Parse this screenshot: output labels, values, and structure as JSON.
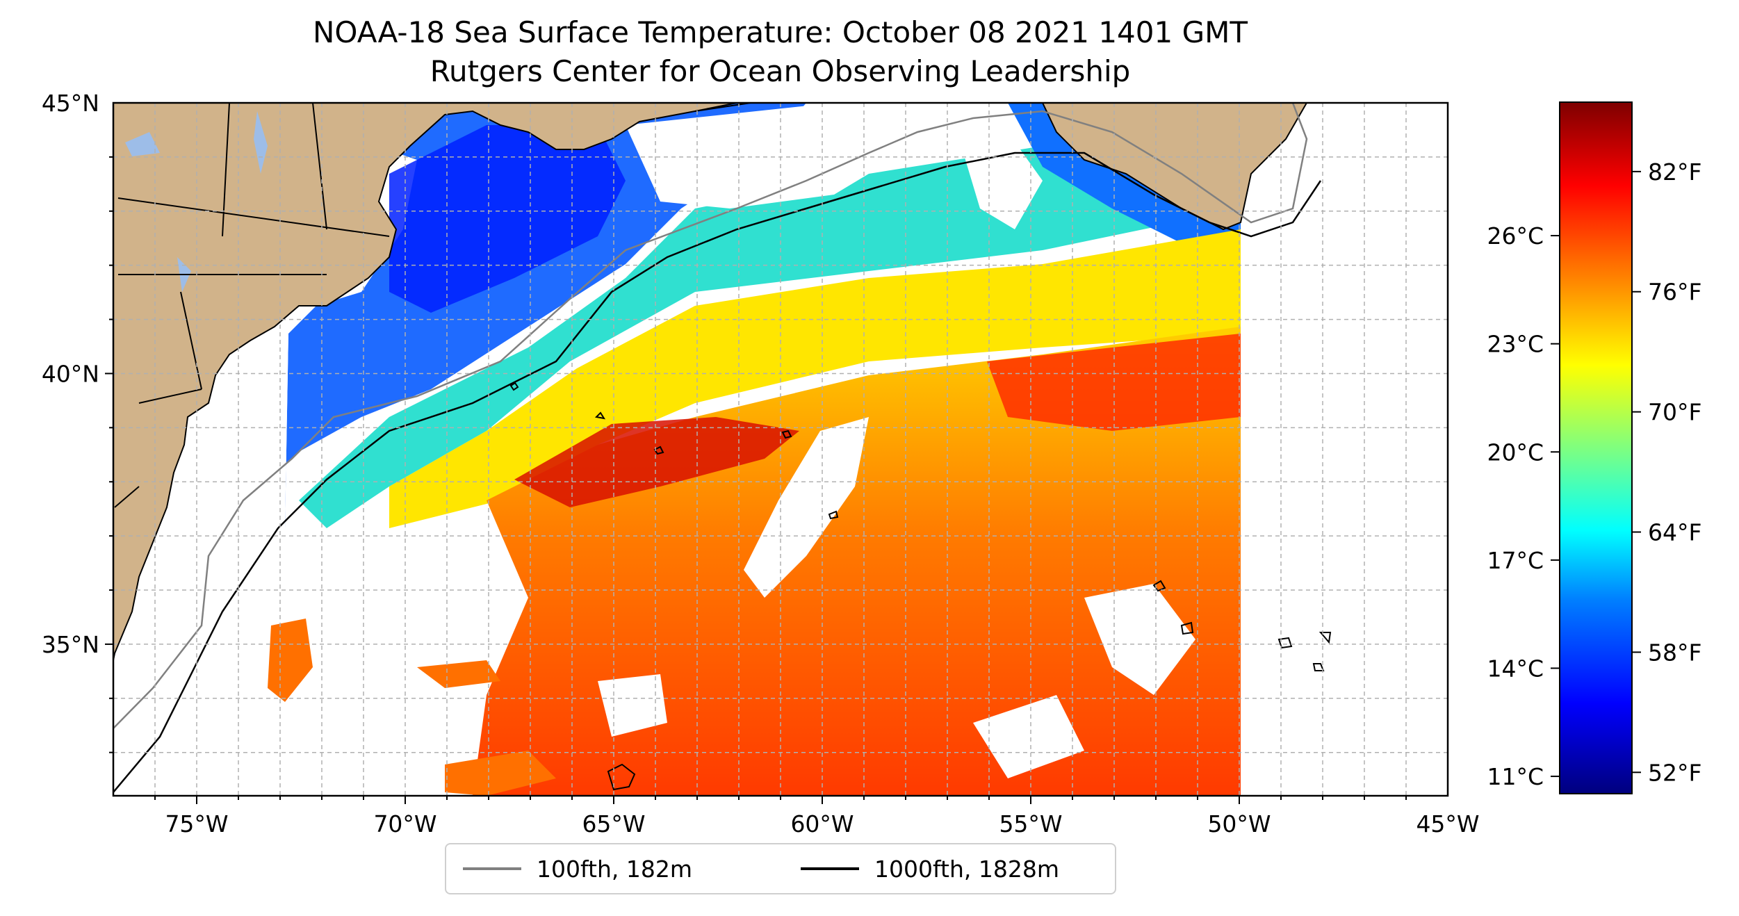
{
  "title": {
    "line1": "NOAA-18 Sea Surface Temperature: October 08 2021 1401 GMT",
    "line2": "Rutgers Center for Ocean Observing Leadership"
  },
  "map": {
    "extent": {
      "lon_min": -77,
      "lon_max": -45,
      "lat_min": 32.2,
      "lat_max": 45
    },
    "lon_ticks": [
      {
        "value": -75,
        "label": "75°W"
      },
      {
        "value": -70,
        "label": "70°W"
      },
      {
        "value": -65,
        "label": "65°W"
      },
      {
        "value": -60,
        "label": "60°W"
      },
      {
        "value": -55,
        "label": "55°W"
      },
      {
        "value": -50,
        "label": "50°W"
      },
      {
        "value": -45,
        "label": "45°W"
      }
    ],
    "lat_ticks": [
      {
        "value": 45,
        "label": "45°N"
      },
      {
        "value": 40,
        "label": "40°N"
      },
      {
        "value": 35,
        "label": "35°N"
      }
    ],
    "colors": {
      "land": "#d1b38a",
      "lakes": "#9dbde8",
      "no_data": "#ffffff",
      "grid": "#b0b0b0",
      "isobath_100fth": "#808080",
      "isobath_1000fth": "#000000"
    }
  },
  "legend": {
    "items": [
      {
        "label": "100fth, 182m",
        "color": "#808080"
      },
      {
        "label": "1000fth, 1828m",
        "color": "#000000"
      }
    ]
  },
  "colorbar": {
    "fahrenheit": [
      {
        "value": 82,
        "label": "82°F"
      },
      {
        "value": 76,
        "label": "76°F"
      },
      {
        "value": 70,
        "label": "70°F"
      },
      {
        "value": 64,
        "label": "64°F"
      },
      {
        "value": 58,
        "label": "58°F"
      },
      {
        "value": 52,
        "label": "52°F"
      }
    ],
    "celsius": [
      {
        "value": 26,
        "label": "26°C"
      },
      {
        "value": 23,
        "label": "23°C"
      },
      {
        "value": 20,
        "label": "20°C"
      },
      {
        "value": 17,
        "label": "17°C"
      },
      {
        "value": 14,
        "label": "14°C"
      },
      {
        "value": 11,
        "label": "11°C"
      }
    ],
    "colormap": "jet"
  }
}
